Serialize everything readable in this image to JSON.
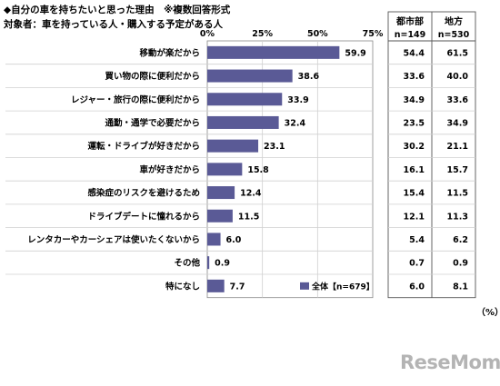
{
  "header": {
    "title": "◆自分の車を持ちたいと思った理由　※複数回答形式",
    "subtitle": "対象者：車を持っている人・購入する予定がある人"
  },
  "table": {
    "col1_header": "都市部",
    "col1_n": "n=149",
    "col2_header": "地方",
    "col2_n": "n=530",
    "unit": "（%）"
  },
  "logo_text": "ReseMom",
  "colors": {
    "bar": "#5a5a96",
    "grid": "#d0d0d0"
  },
  "chart_data": {
    "type": "bar",
    "orientation": "horizontal",
    "categories": [
      "移動が楽だから",
      "買い物の際に便利だから",
      "レジャー・旅行の際に便利だから",
      "通勤・通学で必要だから",
      "運転・ドライブが好きだから",
      "車が好きだから",
      "感染症のリスクを避けるため",
      "ドライブデートに憧れるから",
      "レンタカーやカーシェアは使いたくないから",
      "その他",
      "特になし"
    ],
    "series": [
      {
        "name": "全体【n=679】",
        "values": [
          59.9,
          38.6,
          33.9,
          32.4,
          23.1,
          15.8,
          12.4,
          11.5,
          6.0,
          0.9,
          7.7
        ]
      }
    ],
    "value_labels": [
      "59.9",
      "38.6",
      "33.9",
      "32.4",
      "23.1",
      "15.8",
      "12.4",
      "11.5",
      "6.0",
      "0.9",
      "7.7"
    ],
    "xlim": [
      0,
      75
    ],
    "xticks": [
      "0%",
      "25%",
      "50%",
      "75%"
    ],
    "xtick_values": [
      0,
      25,
      50,
      75
    ],
    "legend_position": "bottom-right",
    "table_values": {
      "urban": [
        "54.4",
        "33.6",
        "34.9",
        "23.5",
        "30.2",
        "16.1",
        "15.4",
        "12.1",
        "5.4",
        "0.7",
        "6.0"
      ],
      "rural": [
        "61.5",
        "40.0",
        "33.6",
        "34.9",
        "21.1",
        "15.7",
        "11.5",
        "11.3",
        "6.2",
        "0.9",
        "8.1"
      ]
    }
  }
}
